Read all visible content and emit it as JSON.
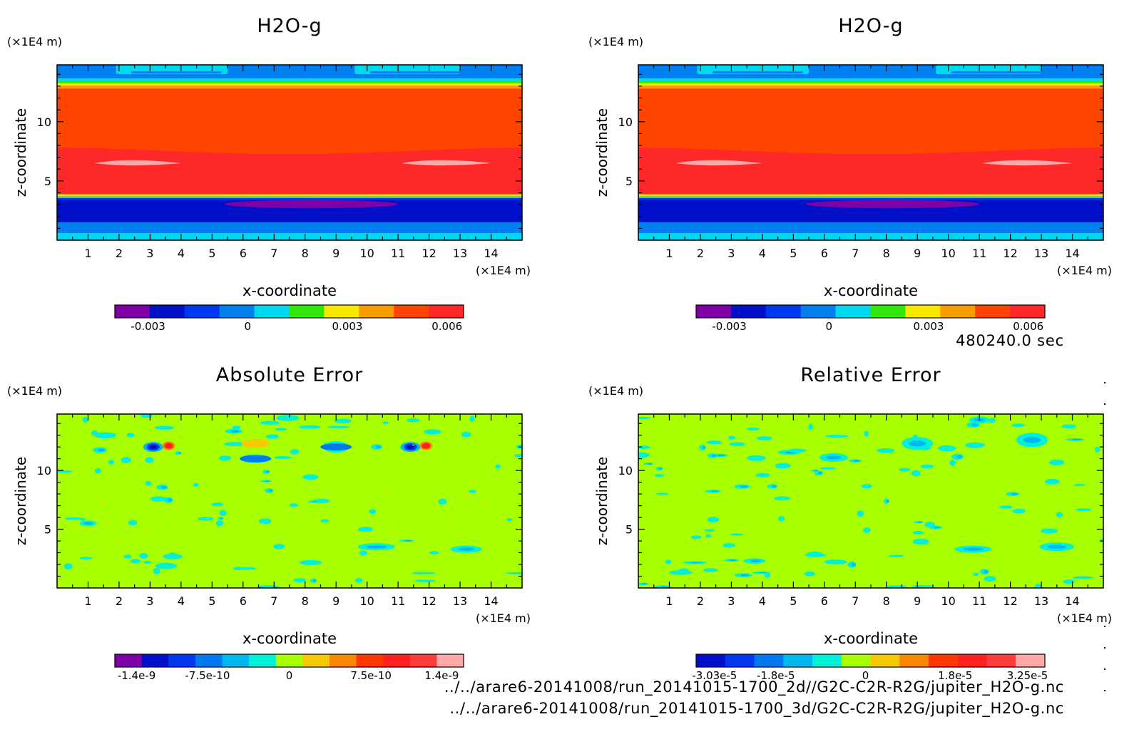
{
  "colors": {
    "h2o_levels": [
      "#8000a8",
      "#0010c8",
      "#0038f0",
      "#0080f0",
      "#00d8f0",
      "#30e808",
      "#f8e800",
      "#f89c00",
      "#ff4400",
      "#ff2828"
    ],
    "abs_levels": [
      "#8000a8",
      "#0010c8",
      "#0038f0",
      "#0078f0",
      "#00b8f0",
      "#00f0d8",
      "#a8ff00",
      "#f8c800",
      "#f88800",
      "#ff3800",
      "#ff2020",
      "#ff3c3c",
      "#ffa8a8"
    ],
    "rel_levels": [
      "#0010c8",
      "#0038f0",
      "#0078f0",
      "#00b8f0",
      "#00f0d8",
      "#a8ff00",
      "#f8c800",
      "#f88800",
      "#ff3800",
      "#ff2020",
      "#ff3c3c",
      "#ffa8a8"
    ],
    "error_background": "#a8ff00"
  },
  "time_label": "480240.0 sec",
  "file_paths": [
    "../../arare6-20141008/run_20141015-1700_2d//G2C-C2R-R2G/jupiter_H2O-g.nc",
    "../../arare6-20141008/run_20141015-1700_3d/G2C-C2R-R2G/jupiter_H2O-g.nc"
  ],
  "chart_data": [
    {
      "type": "heatmap",
      "title": "H2O-g",
      "xlabel": "x-coordinate",
      "ylabel": "z-coordinate",
      "x_unit": "(×1E4 m)",
      "y_unit": "(×1E4 m)",
      "xlim": [
        0,
        15
      ],
      "ylim": [
        0,
        14.8
      ],
      "x_ticks": [
        1,
        2,
        3,
        4,
        5,
        6,
        7,
        8,
        9,
        10,
        11,
        12,
        13,
        14
      ],
      "y_ticks": [
        5,
        10
      ],
      "colorbar": {
        "ticks": [
          "-0.003",
          "0",
          "0.003",
          "0.006"
        ],
        "range": [
          -0.004,
          0.0065
        ]
      },
      "bands": [
        {
          "z": [
            0,
            0.6
          ],
          "value": "0.0003"
        },
        {
          "z": [
            0.6,
            1.5
          ],
          "value": "-0.0012"
        },
        {
          "z": [
            1.5,
            3.4
          ],
          "value": "-0.0022"
        },
        {
          "z": [
            3.4,
            3.8
          ],
          "value": "0.001"
        },
        {
          "z": [
            3.8,
            7.8
          ],
          "value": "0.006"
        },
        {
          "z": [
            7.8,
            12.8
          ],
          "value": "0.0052"
        },
        {
          "z": [
            12.8,
            13.6
          ],
          "value": "0.0025"
        },
        {
          "z": [
            13.6,
            14.8
          ],
          "value": "-0.0008"
        }
      ]
    },
    {
      "type": "heatmap",
      "title": "H2O-g",
      "xlabel": "x-coordinate",
      "ylabel": "z-coordinate",
      "x_unit": "(×1E4 m)",
      "y_unit": "(×1E4 m)",
      "xlim": [
        0,
        15
      ],
      "ylim": [
        0,
        14.8
      ],
      "x_ticks": [
        1,
        2,
        3,
        4,
        5,
        6,
        7,
        8,
        9,
        10,
        11,
        12,
        13,
        14
      ],
      "y_ticks": [
        5,
        10
      ],
      "colorbar": {
        "ticks": [
          "-0.003",
          "0",
          "0.003",
          "0.006"
        ],
        "range": [
          -0.004,
          0.0065
        ]
      }
    },
    {
      "type": "heatmap",
      "title": "Absolute Error",
      "xlabel": "x-coordinate",
      "ylabel": "z-coordinate",
      "x_unit": "(×1E4 m)",
      "y_unit": "(×1E4 m)",
      "xlim": [
        0,
        15
      ],
      "ylim": [
        0,
        14.8
      ],
      "x_ticks": [
        1,
        2,
        3,
        4,
        5,
        6,
        7,
        8,
        9,
        10,
        11,
        12,
        13,
        14
      ],
      "y_ticks": [
        5,
        10
      ],
      "colorbar": {
        "ticks": [
          "-1.4e-9",
          "-7.5e-10",
          "0",
          "7.5e-10",
          "1.4e-9"
        ],
        "range": [
          -1.6e-09,
          1.6e-09
        ]
      },
      "background_value": "0",
      "features": [
        {
          "x": 3.1,
          "z": 12.0,
          "sign": "negative",
          "value": "-1.4e-9"
        },
        {
          "x": 3.6,
          "z": 12.1,
          "sign": "positive",
          "value": "1.4e-9"
        },
        {
          "x": 11.4,
          "z": 12.0,
          "sign": "negative",
          "value": "-1.4e-9"
        },
        {
          "x": 11.9,
          "z": 12.1,
          "sign": "positive",
          "value": "1.4e-9"
        },
        {
          "x": 9.0,
          "z": 12.0,
          "sign": "negative",
          "value": "-5e-10"
        },
        {
          "x": 6.4,
          "z": 11.0,
          "sign": "negative",
          "value": "-4e-10"
        }
      ]
    },
    {
      "type": "heatmap",
      "title": "Relative Error",
      "xlabel": "x-coordinate",
      "ylabel": "z-coordinate",
      "x_unit": "(×1E4 m)",
      "y_unit": "(×1E4 m)",
      "xlim": [
        0,
        15
      ],
      "ylim": [
        0,
        14.8
      ],
      "x_ticks": [
        1,
        2,
        3,
        4,
        5,
        6,
        7,
        8,
        9,
        10,
        11,
        12,
        13,
        14
      ],
      "y_ticks": [
        5,
        10
      ],
      "colorbar": {
        "ticks": [
          "-3.03e-5",
          "-1.8e-5",
          "0",
          "1.8e-5",
          "3.25e-5"
        ],
        "range": [
          -3.4e-05,
          3.6e-05
        ]
      },
      "background_value": "0"
    }
  ]
}
